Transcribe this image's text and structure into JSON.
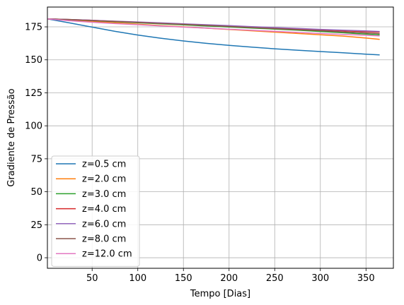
{
  "chart_data": {
    "type": "line",
    "title": "",
    "xlabel": "Tempo [Dias]",
    "ylabel": "Gradiente de Pressão",
    "xlim": [
      1,
      380
    ],
    "ylim": [
      -8,
      190
    ],
    "xticks": [
      50,
      100,
      150,
      200,
      250,
      300,
      350
    ],
    "yticks": [
      0,
      25,
      50,
      75,
      100,
      125,
      150,
      175
    ],
    "grid": true,
    "legend_position": "lower-left",
    "x": [
      0,
      25,
      50,
      75,
      100,
      125,
      150,
      175,
      200,
      225,
      250,
      275,
      300,
      325,
      350,
      365
    ],
    "series": [
      {
        "name": "z=0.5 cm",
        "color": "#1f77b4",
        "values": [
          181,
          178,
          174.8,
          171.6,
          168.8,
          166.4,
          164.3,
          162.5,
          161,
          159.6,
          158.4,
          157.3,
          156.3,
          155.3,
          154.3,
          153.7
        ]
      },
      {
        "name": "z=2.0 cm",
        "color": "#ff7f0e",
        "values": [
          181,
          180.2,
          179.1,
          178.1,
          177,
          176,
          175,
          174,
          173,
          172,
          171,
          170,
          169,
          168,
          166.5,
          165.5
        ]
      },
      {
        "name": "z=3.0 cm",
        "color": "#2ca02c",
        "values": [
          181,
          180.5,
          179.7,
          178.9,
          178.1,
          177.3,
          176.5,
          175.7,
          174.9,
          174.1,
          173.3,
          172.5,
          171.5,
          170.5,
          169.5,
          169
        ]
      },
      {
        "name": "z=4.0 cm",
        "color": "#d62728",
        "values": [
          181,
          180.6,
          180,
          179.2,
          178.5,
          177.8,
          177.1,
          176.4,
          175.6,
          174.9,
          174.1,
          173.4,
          172.7,
          172,
          171.4,
          171
        ]
      },
      {
        "name": "z=6.0 cm",
        "color": "#9467bd",
        "values": [
          181,
          180.6,
          180,
          179.3,
          178.7,
          178,
          177.3,
          176.6,
          175.9,
          175.2,
          174.5,
          173.8,
          173.1,
          172.5,
          171.9,
          171.5
        ]
      },
      {
        "name": "z=8.0 cm",
        "color": "#8c564b",
        "values": [
          181,
          180.5,
          179.8,
          179.1,
          178.4,
          177.6,
          176.9,
          176.1,
          175.3,
          174.5,
          173.7,
          172.9,
          172.1,
          171.2,
          170.4,
          169.9
        ]
      },
      {
        "name": "z=12.0 cm",
        "color": "#e377c2",
        "values": [
          181,
          179.6,
          178.5,
          177.5,
          176.6,
          175.7,
          174.8,
          174,
          173.2,
          172.4,
          171.6,
          170.8,
          170,
          169.3,
          168.6,
          168.1
        ]
      }
    ]
  }
}
